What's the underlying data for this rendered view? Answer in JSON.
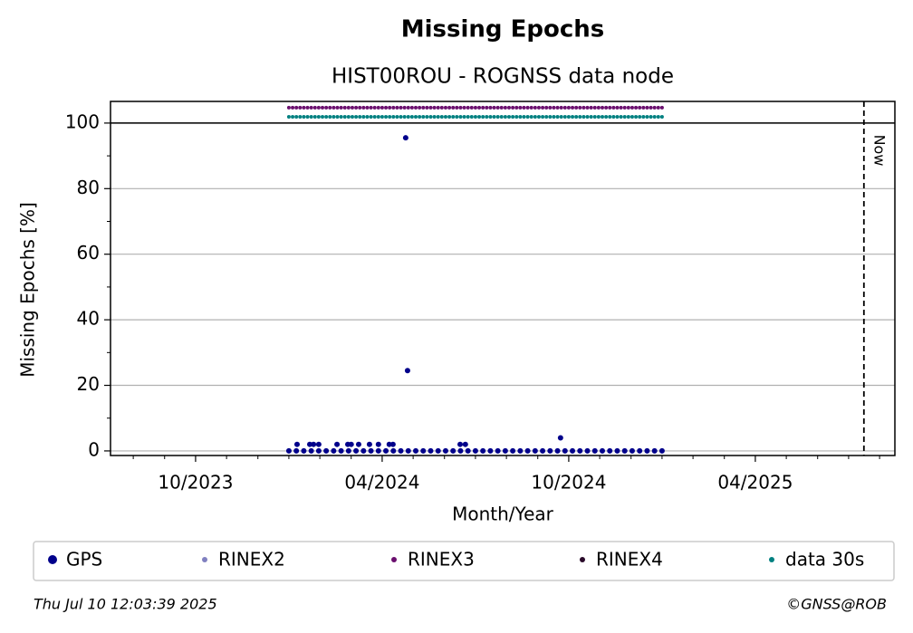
{
  "chart_data": {
    "type": "scatter",
    "title": "Missing Epochs",
    "subtitle": "HIST00ROU - ROGNSS data node",
    "xlabel": "Month/Year",
    "ylabel": "Missing Epochs [%]",
    "xlim": [
      2023.522,
      2025.624
    ],
    "ylim": [
      -1.4,
      106.6
    ],
    "xticks": [
      {
        "value": 2023.75,
        "label": "10/2023"
      },
      {
        "value": 2024.25,
        "label": "04/2024"
      },
      {
        "value": 2024.75,
        "label": "10/2024"
      },
      {
        "value": 2025.25,
        "label": "04/2025"
      }
    ],
    "xminorticks": [
      2023.583,
      2023.667,
      2023.833,
      2023.917,
      2024.0,
      2024.083,
      2024.167,
      2024.333,
      2024.417,
      2024.5,
      2024.583,
      2024.667,
      2024.833,
      2024.917,
      2025.0,
      2025.083,
      2025.167,
      2025.333,
      2025.417,
      2025.5,
      2025.583
    ],
    "yticks": [
      0,
      20,
      40,
      60,
      80,
      100
    ],
    "yminorticks": [
      10,
      30,
      50,
      70,
      90
    ],
    "grid": true,
    "hline": 100,
    "vline": {
      "x": 2025.541,
      "label": "Now"
    },
    "x": [
      2024.0,
      2024.01,
      2024.02,
      2024.03,
      2024.04,
      2024.05,
      2024.06,
      2024.07,
      2024.08,
      2024.09,
      2024.1,
      2024.11,
      2024.12,
      2024.13,
      2024.14,
      2024.15,
      2024.16,
      2024.17,
      2024.18,
      2024.19,
      2024.2,
      2024.21,
      2024.22,
      2024.23,
      2024.24,
      2024.25,
      2024.26,
      2024.27,
      2024.28,
      2024.29,
      2024.3,
      2024.31,
      2024.32,
      2024.33,
      2024.34,
      2024.35,
      2024.36,
      2024.37,
      2024.38,
      2024.39,
      2024.4,
      2024.41,
      2024.42,
      2024.43,
      2024.44,
      2024.45,
      2024.46,
      2024.47,
      2024.48,
      2024.49,
      2024.5,
      2024.51,
      2024.52,
      2024.53,
      2024.54,
      2024.55,
      2024.56,
      2024.57,
      2024.58,
      2024.59,
      2024.6,
      2024.61,
      2024.62,
      2024.63,
      2024.64,
      2024.65,
      2024.66,
      2024.67,
      2024.68,
      2024.69,
      2024.7,
      2024.71,
      2024.72,
      2024.73,
      2024.74,
      2024.75,
      2024.76,
      2024.77,
      2024.78,
      2024.79,
      2024.8,
      2024.81,
      2024.82,
      2024.83,
      2024.84,
      2024.85,
      2024.86,
      2024.87,
      2024.88,
      2024.89,
      2024.9,
      2024.91,
      2024.92,
      2024.93,
      2024.94,
      2024.95,
      2024.96,
      2024.97,
      2024.98,
      2024.99,
      2025.0
    ],
    "series": [
      {
        "name": "GPS",
        "color": "#00008b",
        "size": 3,
        "x": [
          2024.0,
          2024.02,
          2024.04,
          2024.06,
          2024.08,
          2024.1,
          2024.12,
          2024.14,
          2024.16,
          2024.18,
          2024.2,
          2024.22,
          2024.24,
          2024.26,
          2024.28,
          2024.3,
          2024.32,
          2024.34,
          2024.36,
          2024.38,
          2024.4,
          2024.42,
          2024.44,
          2024.46,
          2024.48,
          2024.5,
          2024.52,
          2024.54,
          2024.56,
          2024.58,
          2024.6,
          2024.62,
          2024.64,
          2024.66,
          2024.68,
          2024.7,
          2024.72,
          2024.74,
          2024.76,
          2024.78,
          2024.8,
          2024.82,
          2024.84,
          2024.86,
          2024.88,
          2024.9,
          2024.92,
          2024.94,
          2024.96,
          2024.98,
          2025.0,
          2024.022,
          2024.056,
          2024.066,
          2024.08,
          2024.129,
          2024.158,
          2024.167,
          2024.187,
          2024.216,
          2024.24,
          2024.269,
          2024.279,
          2024.313,
          2024.318,
          2024.459,
          2024.473,
          2024.728
        ],
        "values": [
          0,
          0,
          0,
          0,
          0,
          0,
          0,
          0,
          0,
          0,
          0,
          0,
          0,
          0,
          0,
          0,
          0,
          0,
          0,
          0,
          0,
          0,
          0,
          0,
          0,
          0,
          0,
          0,
          0,
          0,
          0,
          0,
          0,
          0,
          0,
          0,
          0,
          0,
          0,
          0,
          0,
          0,
          0,
          0,
          0,
          0,
          0,
          0,
          0,
          0,
          0,
          2,
          2,
          2,
          2,
          2,
          2,
          2,
          2,
          2,
          2,
          2,
          2,
          95.5,
          24.5,
          2,
          2,
          4
        ]
      },
      {
        "name": "RINEX2",
        "color": "#8080c0",
        "size": 2,
        "x": [],
        "values": []
      },
      {
        "name": "RINEX3",
        "color": "#6a0f6e",
        "size": 2,
        "values": [
          104.7,
          104.7,
          104.7,
          104.7,
          104.7,
          104.7,
          104.7,
          104.7,
          104.7,
          104.7,
          104.7,
          104.7,
          104.7,
          104.7,
          104.7,
          104.7,
          104.7,
          104.7,
          104.7,
          104.7,
          104.7,
          104.7,
          104.7,
          104.7,
          104.7,
          104.7,
          104.7,
          104.7,
          104.7,
          104.7,
          104.7,
          104.7,
          104.7,
          104.7,
          104.7,
          104.7,
          104.7,
          104.7,
          104.7,
          104.7,
          104.7,
          104.7,
          104.7,
          104.7,
          104.7,
          104.7,
          104.7,
          104.7,
          104.7,
          104.7,
          104.7,
          104.7,
          104.7,
          104.7,
          104.7,
          104.7,
          104.7,
          104.7,
          104.7,
          104.7,
          104.7,
          104.7,
          104.7,
          104.7,
          104.7,
          104.7,
          104.7,
          104.7,
          104.7,
          104.7,
          104.7,
          104.7,
          104.7,
          104.7,
          104.7,
          104.7,
          104.7,
          104.7,
          104.7,
          104.7,
          104.7,
          104.7,
          104.7,
          104.7,
          104.7,
          104.7,
          104.7,
          104.7,
          104.7,
          104.7,
          104.7,
          104.7,
          104.7,
          104.7,
          104.7,
          104.7,
          104.7,
          104.7,
          104.7,
          104.7,
          104.7
        ]
      },
      {
        "name": "RINEX4",
        "color": "#2a0a2a",
        "size": 2,
        "x": [],
        "values": []
      },
      {
        "name": "data 30s",
        "color": "#008080",
        "size": 2,
        "values": [
          101.9,
          101.9,
          101.9,
          101.9,
          101.9,
          101.9,
          101.9,
          101.9,
          101.9,
          101.9,
          101.9,
          101.9,
          101.9,
          101.9,
          101.9,
          101.9,
          101.9,
          101.9,
          101.9,
          101.9,
          101.9,
          101.9,
          101.9,
          101.9,
          101.9,
          101.9,
          101.9,
          101.9,
          101.9,
          101.9,
          101.9,
          101.9,
          101.9,
          101.9,
          101.9,
          101.9,
          101.9,
          101.9,
          101.9,
          101.9,
          101.9,
          101.9,
          101.9,
          101.9,
          101.9,
          101.9,
          101.9,
          101.9,
          101.9,
          101.9,
          101.9,
          101.9,
          101.9,
          101.9,
          101.9,
          101.9,
          101.9,
          101.9,
          101.9,
          101.9,
          101.9,
          101.9,
          101.9,
          101.9,
          101.9,
          101.9,
          101.9,
          101.9,
          101.9,
          101.9,
          101.9,
          101.9,
          101.9,
          101.9,
          101.9,
          101.9,
          101.9,
          101.9,
          101.9,
          101.9,
          101.9,
          101.9,
          101.9,
          101.9,
          101.9,
          101.9,
          101.9,
          101.9,
          101.9,
          101.9,
          101.9,
          101.9,
          101.9,
          101.9,
          101.9,
          101.9,
          101.9,
          101.9,
          101.9,
          101.9,
          101.9
        ]
      }
    ],
    "timestamp": "Thu Jul 10 12:03:39 2025",
    "credit": "©GNSS@ROB"
  }
}
